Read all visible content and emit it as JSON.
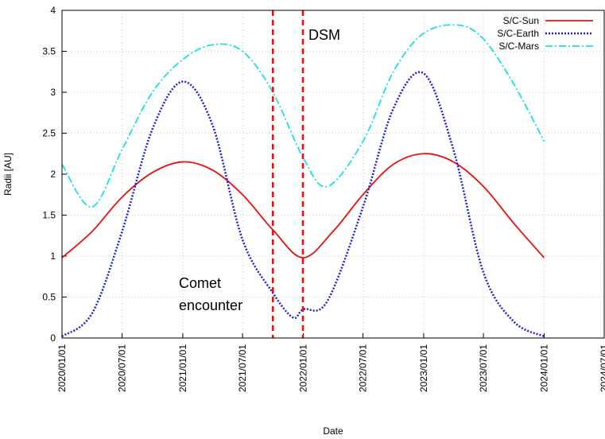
{
  "chart_data": {
    "type": "line",
    "xlabel": "Date",
    "ylabel": "Radii [AU]",
    "xlim": [
      "2020/01/01",
      "2024/07/01"
    ],
    "ylim": [
      0,
      4
    ],
    "grid": true,
    "legend_position": "top-right",
    "x_ticks": [
      "2020/01/01",
      "2020/07/01",
      "2021/01/01",
      "2021/07/01",
      "2022/01/01",
      "2022/07/01",
      "2023/01/01",
      "2023/07/01",
      "2024/01/01",
      "2024/07/01"
    ],
    "y_ticks": [
      "0",
      "0.5",
      "1",
      "1.5",
      "2",
      "2.5",
      "3",
      "3.5",
      "4"
    ],
    "series": [
      {
        "name": "S/C-Sun",
        "color": "#e8120c",
        "style": "solid",
        "x": [
          "2020/01/01",
          "2020/04/01",
          "2020/07/01",
          "2020/10/01",
          "2021/01/01",
          "2021/04/01",
          "2021/07/01",
          "2021/10/01",
          "2021/12/31",
          "2022/04/01",
          "2022/07/01",
          "2022/10/01",
          "2023/01/01",
          "2023/04/01",
          "2023/07/01",
          "2023/10/01",
          "2024/01/01"
        ],
        "y": [
          0.98,
          1.3,
          1.72,
          2.02,
          2.15,
          2.05,
          1.75,
          1.32,
          0.98,
          1.3,
          1.75,
          2.12,
          2.25,
          2.15,
          1.85,
          1.4,
          0.98
        ]
      },
      {
        "name": "S/C-Earth",
        "color": "#1d1ddb",
        "style": "dotted",
        "x": [
          "2020/01/01",
          "2020/04/01",
          "2020/07/01",
          "2020/10/01",
          "2021/01/01",
          "2021/04/01",
          "2021/07/01",
          "2021/10/01",
          "2021/12/01",
          "2022/01/01",
          "2022/03/15",
          "2022/07/01",
          "2022/10/01",
          "2023/01/01",
          "2023/04/01",
          "2023/07/01",
          "2023/10/01",
          "2024/01/01"
        ],
        "y": [
          0.02,
          0.3,
          1.3,
          2.55,
          3.13,
          2.6,
          1.2,
          0.55,
          0.25,
          0.35,
          0.45,
          1.6,
          2.8,
          3.23,
          2.3,
          0.8,
          0.2,
          0.02
        ]
      },
      {
        "name": "S/C-Mars",
        "color": "#19dfe6",
        "style": "dashdot",
        "x": [
          "2020/01/01",
          "2020/04/01",
          "2020/07/01",
          "2020/10/01",
          "2021/01/01",
          "2021/04/01",
          "2021/07/01",
          "2021/10/01",
          "2022/01/01",
          "2022/03/15",
          "2022/07/01",
          "2022/10/01",
          "2023/01/01",
          "2023/04/15",
          "2023/07/01",
          "2023/10/01",
          "2024/01/01"
        ],
        "y": [
          2.12,
          1.6,
          2.3,
          3.0,
          3.4,
          3.58,
          3.5,
          3.0,
          2.2,
          1.85,
          2.4,
          3.25,
          3.72,
          3.82,
          3.65,
          3.1,
          2.4
        ]
      }
    ],
    "vlines": [
      {
        "x": "2021/10/01",
        "color": "#e8120c",
        "style": "dashed"
      },
      {
        "x": "2021/12/31",
        "color": "#e8120c",
        "style": "dashed"
      }
    ],
    "annotations": [
      {
        "text": "DSM"
      },
      {
        "text": "Comet"
      },
      {
        "text": "encounter"
      }
    ]
  }
}
